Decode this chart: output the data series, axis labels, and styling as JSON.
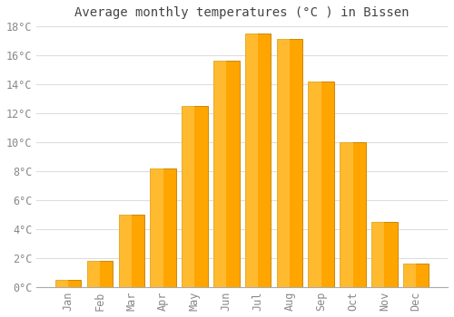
{
  "months": [
    "Jan",
    "Feb",
    "Mar",
    "Apr",
    "May",
    "Jun",
    "Jul",
    "Aug",
    "Sep",
    "Oct",
    "Nov",
    "Dec"
  ],
  "values": [
    0.5,
    1.8,
    5.0,
    8.2,
    12.5,
    15.6,
    17.5,
    17.1,
    14.2,
    10.0,
    4.5,
    1.6
  ],
  "bar_color": "#FFA500",
  "bar_edge_color": "#CC8800",
  "title": "Average monthly temperatures (°C ) in Bissen",
  "ylim": [
    0,
    18
  ],
  "ytick_step": 2,
  "background_color": "#ffffff",
  "grid_color": "#dddddd",
  "title_fontsize": 10,
  "tick_fontsize": 8.5,
  "tick_label_color": "#888888",
  "font_family": "monospace"
}
